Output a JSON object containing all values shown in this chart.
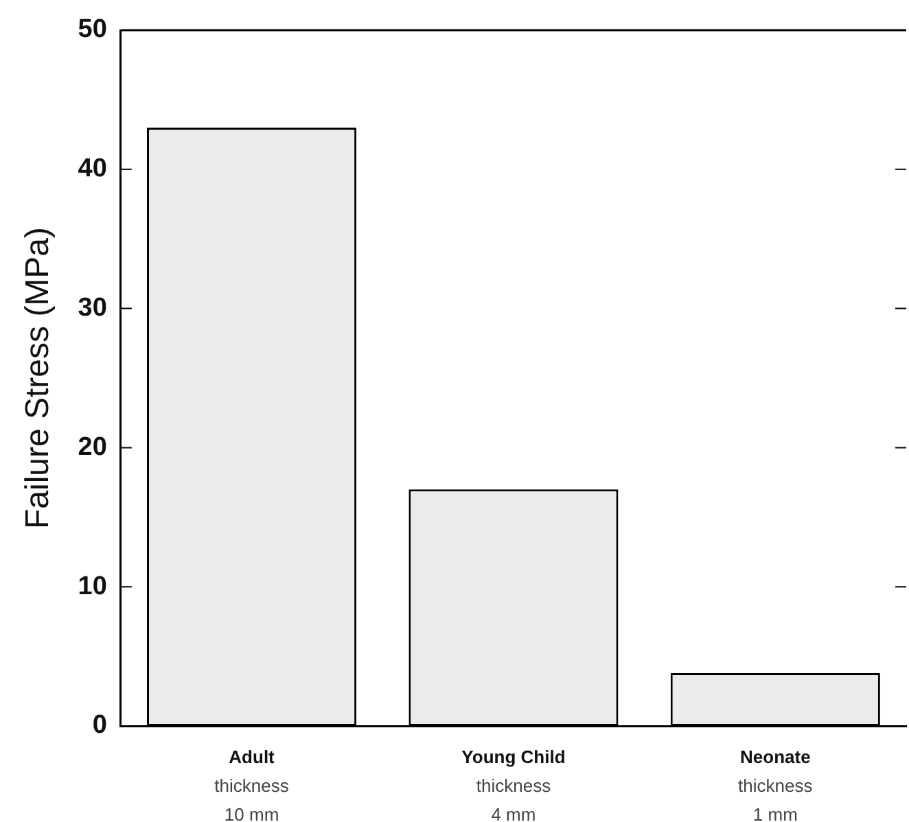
{
  "chart_data": {
    "type": "bar",
    "ylabel": "Failure Stress (MPa)",
    "categories": [
      "Adult\nthickness\n10 mm",
      "Young Child\nthickness\n4 mm",
      "Neonate\nthickness\n1 mm"
    ],
    "values": [
      43,
      17,
      3.8
    ],
    "color": "#ebebeb",
    "ylim": [
      0,
      50
    ],
    "yticks": [
      0,
      10,
      20,
      30,
      40,
      50
    ],
    "grid": false,
    "legend": false
  }
}
